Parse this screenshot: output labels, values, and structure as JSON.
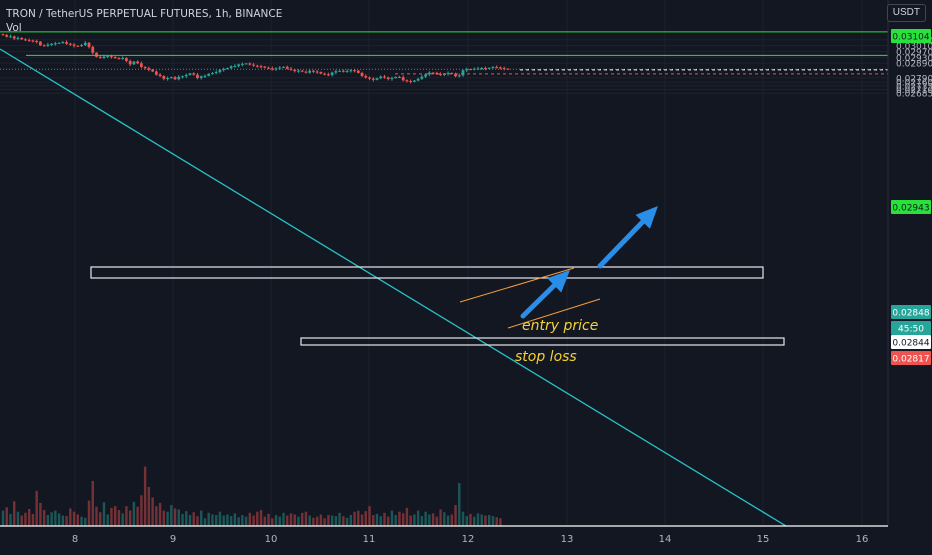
{
  "header": {
    "title": "TRON / TetherUS PERPETUAL FUTURES, 1h, BINANCE",
    "indicator": "Vol",
    "currency": "USDT"
  },
  "colors": {
    "background": "#131722",
    "up": "#26a69a",
    "down": "#ef5350",
    "trendline": "#27c3c8",
    "target_line": "#28e23b",
    "arrow": "#2a8ee8",
    "annotation_text": "#f5d235",
    "channel_line": "#f79d3a"
  },
  "chart_data": {
    "type": "candlestick",
    "symbol": "TRXUSDT",
    "timeframe": "1h",
    "x_axis": {
      "ticks": [
        "8",
        "9",
        "10",
        "11",
        "12",
        "13",
        "14",
        "15",
        "16"
      ]
    },
    "y_axis": {
      "ticks": [
        0.0305,
        0.0301,
        0.0297,
        0.0293,
        0.0289,
        0.0279,
        0.0276,
        0.02735,
        0.0271,
        0.02685
      ],
      "range": [
        0.0267,
        0.0316
      ]
    },
    "candles_close": [
      0.03082,
      0.03071,
      0.03073,
      0.03059,
      0.03063,
      0.03053,
      0.03047,
      0.03045,
      0.03041,
      0.03037,
      0.03012,
      0.03009,
      0.03017,
      0.03022,
      0.03026,
      0.03029,
      0.03034,
      0.03023,
      0.03017,
      0.03009,
      0.03007,
      0.03014,
      0.03029,
      0.03001,
      0.02961,
      0.02933,
      0.02926,
      0.02935,
      0.02938,
      0.02933,
      0.02924,
      0.02921,
      0.02925,
      0.02905,
      0.02882,
      0.02901,
      0.02889,
      0.02864,
      0.02856,
      0.02846,
      0.02833,
      0.02811,
      0.02802,
      0.02783,
      0.02788,
      0.02794,
      0.0278,
      0.02796,
      0.028,
      0.02809,
      0.0282,
      0.02811,
      0.02788,
      0.028,
      0.02803,
      0.02817,
      0.02822,
      0.02829,
      0.02844,
      0.0285,
      0.02856,
      0.02868,
      0.02871,
      0.02881,
      0.02885,
      0.02888,
      0.0288,
      0.02873,
      0.02869,
      0.02867,
      0.02859,
      0.02855,
      0.02847,
      0.02855,
      0.0286,
      0.02865,
      0.02852,
      0.02845,
      0.02836,
      0.02839,
      0.02832,
      0.02825,
      0.02838,
      0.02833,
      0.02829,
      0.02818,
      0.02813,
      0.02809,
      0.02826,
      0.02835,
      0.02838,
      0.02832,
      0.02836,
      0.02842,
      0.02839,
      0.02823,
      0.02802,
      0.02792,
      0.02784,
      0.02776,
      0.02787,
      0.02798,
      0.02792,
      0.02782,
      0.02788,
      0.02796,
      0.02794,
      0.02773,
      0.02768,
      0.02763,
      0.02771,
      0.02783,
      0.02798,
      0.02813,
      0.02825,
      0.02823,
      0.02815,
      0.02811,
      0.02816,
      0.02823,
      0.02817,
      0.028,
      0.02807,
      0.02841,
      0.02849,
      0.02846,
      0.02852,
      0.02853,
      0.02857,
      0.02853,
      0.02858,
      0.02863,
      0.02861,
      0.02857,
      0.02852,
      0.02848
    ],
    "volume": [
      28,
      34,
      22,
      45,
      26,
      19,
      24,
      31,
      22,
      64,
      42,
      29,
      20,
      25,
      28,
      23,
      19,
      18,
      32,
      26,
      21,
      17,
      15,
      46,
      82,
      35,
      25,
      43,
      21,
      33,
      36,
      29,
      23,
      36,
      28,
      44,
      35,
      56,
      108,
      71,
      52,
      36,
      42,
      28,
      26,
      38,
      32,
      30,
      22,
      27,
      20,
      25,
      18,
      28,
      14,
      24,
      21,
      20,
      26,
      19,
      21,
      18,
      23,
      16,
      20,
      17,
      24,
      19,
      26,
      29,
      17,
      22,
      14,
      20,
      17,
      24,
      19,
      23,
      21,
      17,
      24,
      26,
      19,
      15,
      17,
      21,
      14,
      20,
      19,
      18,
      24,
      18,
      15,
      20,
      26,
      28,
      21,
      27,
      36,
      20,
      22,
      18,
      24,
      17,
      28,
      20,
      26,
      23,
      33,
      19,
      21,
      28,
      18,
      26,
      21,
      23,
      17,
      30,
      25,
      19,
      21,
      38,
      78,
      26,
      18,
      22,
      17,
      23,
      21,
      19,
      20,
      18,
      16,
      14
    ],
    "price_labels": [
      {
        "label": "0.03104",
        "kind": "target"
      },
      {
        "label": "0.02943",
        "kind": "target"
      },
      {
        "label": "0.02848",
        "kind": "current"
      },
      {
        "label": "45:50",
        "kind": "countdown"
      },
      {
        "label": "0.02844",
        "kind": "entry"
      },
      {
        "label": "0.02817",
        "kind": "stop"
      }
    ],
    "annotations": {
      "entry": "entry price",
      "stop": "stop loss"
    }
  }
}
